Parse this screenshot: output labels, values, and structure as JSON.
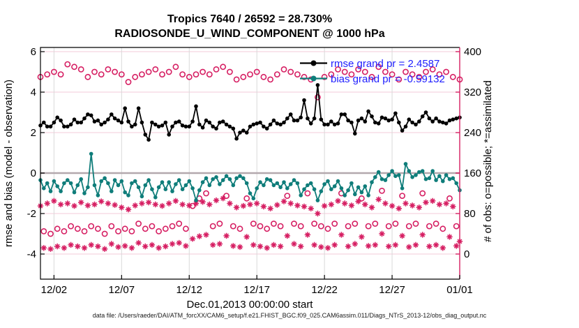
{
  "title_line1": "Tropics 7640 / 26592 = 28.730%",
  "title_line2": "RADIOSONDE_U_WIND_COMPONENT @ 1000 hPa",
  "xlabel": "Dec.01,2013 00:00:00 start",
  "ylabel_left": "rmse and bias (model - observation)",
  "ylabel_right": "# of obs: o=possible; *=assimilated",
  "datafile": "data file: /Users/raeder/DAI/ATM_forcXX/CAM6_setup/f.e21.FHIST_BGC.f09_025.CAM6assim.011/Diags_NTrS_2013-12/obs_diag_output.nc",
  "legend": {
    "rmse": "rmse grand pr = 2.4587",
    "bias": "bias grand pr = -0.59132"
  },
  "colors": {
    "rmse": "#000000",
    "bias": "#0f7d7a",
    "obs": "#d61e62",
    "legend_text": "#2020ff",
    "grid_h": "#f3cbd8",
    "grid_v": "#d9d9d9",
    "zero_line": "#b3a8ad",
    "frame": "#000000"
  },
  "chart_data": {
    "type": "line",
    "title": "Tropics 7640 / 26592 = 28.730% | RADIOSONDE_U_WIND_COMPONENT @ 1000 hPa",
    "xlabel": "Dec.01,2013 00:00:00 start",
    "ylabel_left": "rmse and bias (model - observation)",
    "ylabel_right": "# of obs: o=possible; *=assimilated",
    "grid": true,
    "legend_position": "top-right-transparent",
    "xlim_days": [
      1,
      32
    ],
    "ylim_left": [
      -5.24,
      6.21
    ],
    "right_axis_mapping": "right_value = (left_value + 4) * 40",
    "x_ticks": {
      "days": [
        2,
        7,
        12,
        17,
        22,
        27,
        32
      ],
      "labels": [
        "12/02",
        "12/07",
        "12/12",
        "12/17",
        "12/22",
        "12/27",
        "01/01"
      ]
    },
    "left_ticks": [
      6,
      4,
      2,
      0,
      -2,
      -4
    ],
    "right_ticks": [
      400,
      320,
      240,
      160,
      80,
      0
    ],
    "x_days": {
      "start": 1,
      "step": 0.25,
      "count": 125
    },
    "series": [
      {
        "name": "rmse",
        "axis": "left",
        "marker": "dot",
        "grand_value": 2.4587,
        "values": [
          2.35,
          2.5,
          2.3,
          2.3,
          2.5,
          2.75,
          2.6,
          2.3,
          2.3,
          2.4,
          2.65,
          2.5,
          2.5,
          2.7,
          2.9,
          2.85,
          2.55,
          2.6,
          2.4,
          2.5,
          2.65,
          2.9,
          2.7,
          2.6,
          2.5,
          3.2,
          2.55,
          2.3,
          2.4,
          3.2,
          2.5,
          1.9,
          1.65,
          2.5,
          2.4,
          2.3,
          2.35,
          2.5,
          1.9,
          2.3,
          2.5,
          2.55,
          2.35,
          2.3,
          2.3,
          2.55,
          3.3,
          2.4,
          2.25,
          2.6,
          2.5,
          2.3,
          2.2,
          2.5,
          2.55,
          2.4,
          2.3,
          2.2,
          1.7,
          2.0,
          2.1,
          2.0,
          2.3,
          2.4,
          2.45,
          2.5,
          2.3,
          2.2,
          2.4,
          2.6,
          2.45,
          2.4,
          2.5,
          2.7,
          2.9,
          2.6,
          2.6,
          2.75,
          3.6,
          2.7,
          2.45,
          2.7,
          4.35,
          2.65,
          2.4,
          2.4,
          2.55,
          2.4,
          2.45,
          2.9,
          2.9,
          2.6,
          2.5,
          1.95,
          2.6,
          2.7,
          2.55,
          3.05,
          2.8,
          2.5,
          2.45,
          2.75,
          2.7,
          2.6,
          2.65,
          2.95,
          2.5,
          2.1,
          2.3,
          2.65,
          2.5,
          2.4,
          2.55,
          2.8,
          3.0,
          2.7,
          2.55,
          2.7,
          2.55,
          2.5,
          2.45,
          2.6,
          2.65,
          2.7,
          2.75
        ]
      },
      {
        "name": "bias",
        "axis": "left",
        "marker": "dot",
        "grand_value": -0.59132,
        "values": [
          -0.35,
          -0.75,
          -0.5,
          -0.9,
          -0.4,
          -0.65,
          -0.9,
          -0.5,
          -0.35,
          -0.5,
          -0.95,
          -0.6,
          -0.3,
          -1.0,
          -0.7,
          0.95,
          -0.6,
          -1.1,
          -0.4,
          -0.25,
          -0.5,
          -0.9,
          -0.35,
          -0.6,
          -0.4,
          -0.95,
          -1.1,
          -0.5,
          -0.4,
          -0.7,
          -1.15,
          -0.6,
          -0.35,
          -0.8,
          -1.2,
          -0.7,
          -0.45,
          -0.8,
          -0.45,
          -0.9,
          -0.55,
          -0.35,
          -0.8,
          -0.6,
          -0.4,
          -0.75,
          -1.35,
          -0.85,
          -0.45,
          -0.25,
          -0.6,
          -0.3,
          -0.2,
          -0.55,
          -0.35,
          -0.15,
          -0.3,
          -0.6,
          -0.25,
          -0.15,
          -0.25,
          -0.5,
          -1.0,
          -1.25,
          -0.75,
          -0.45,
          -0.6,
          -0.3,
          -0.35,
          -0.6,
          -0.5,
          -0.7,
          -0.45,
          -0.75,
          -0.55,
          -0.35,
          -0.5,
          -1.1,
          -0.8,
          -0.6,
          -0.5,
          -0.8,
          -1.35,
          -0.9,
          -0.55,
          -0.4,
          -0.8,
          -0.65,
          -0.4,
          -0.75,
          -1.1,
          -0.85,
          -0.5,
          -1.05,
          -0.7,
          -0.95,
          -0.65,
          -1.1,
          -0.45,
          -0.2,
          0.05,
          -0.3,
          -0.35,
          -0.1,
          0.1,
          -0.15,
          -0.1,
          -0.75,
          0.45,
          0.1,
          -0.2,
          -0.1,
          0.05,
          0.1,
          -0.3,
          -0.25,
          0.1,
          -0.35,
          -0.15,
          -0.4,
          -0.1,
          -0.3,
          -0.25,
          -0.5,
          -0.85
        ]
      },
      {
        "name": "possible",
        "axis": "right",
        "marker": "open-circle",
        "values": [
          350,
          45,
          355,
          40,
          360,
          50,
          355,
          45,
          375,
          55,
          370,
          50,
          365,
          45,
          350,
          55,
          360,
          50,
          355,
          40,
          365,
          55,
          360,
          45,
          355,
          50,
          340,
          45,
          350,
          60,
          355,
          50,
          360,
          55,
          365,
          45,
          355,
          50,
          360,
          55,
          370,
          60,
          355,
          50,
          350,
          95,
          355,
          110,
          360,
          120,
          355,
          55,
          365,
          60,
          370,
          115,
          360,
          55,
          345,
          50,
          350,
          110,
          355,
          60,
          360,
          55,
          350,
          50,
          345,
          60,
          355,
          55,
          365,
          115,
          360,
          60,
          355,
          55,
          350,
          120,
          345,
          60,
          310,
          55,
          350,
          50,
          355,
          60,
          365,
          120,
          360,
          55,
          355,
          60,
          365,
          110,
          360,
          55,
          350,
          60,
          370,
          125,
          360,
          55,
          355,
          60,
          345,
          115,
          360,
          55,
          355,
          60,
          350,
          120,
          360,
          55,
          365,
          60,
          355,
          50,
          360,
          110,
          350,
          55,
          345
        ]
      },
      {
        "name": "assimilated",
        "axis": "right",
        "marker": "asterisk",
        "values": [
          95,
          12,
          100,
          10,
          105,
          15,
          98,
          12,
          100,
          18,
          95,
          15,
          102,
          12,
          96,
          18,
          98,
          15,
          104,
          10,
          100,
          20,
          97,
          14,
          92,
          16,
          88,
          12,
          96,
          22,
          100,
          15,
          102,
          18,
          98,
          12,
          95,
          15,
          100,
          20,
          105,
          22,
          98,
          16,
          96,
          30,
          100,
          35,
          103,
          38,
          98,
          18,
          106,
          20,
          110,
          36,
          100,
          16,
          92,
          14,
          95,
          34,
          98,
          18,
          100,
          15,
          94,
          12,
          90,
          18,
          97,
          15,
          104,
          36,
          100,
          20,
          96,
          15,
          94,
          38,
          90,
          18,
          80,
          14,
          95,
          12,
          98,
          18,
          105,
          38,
          100,
          15,
          96,
          20,
          104,
          34,
          98,
          16,
          92,
          18,
          108,
          40,
          100,
          15,
          95,
          18,
          90,
          36,
          100,
          14,
          96,
          18,
          92,
          38,
          102,
          15,
          105,
          18,
          98,
          12,
          100,
          34,
          94,
          16,
          25
        ]
      }
    ]
  }
}
